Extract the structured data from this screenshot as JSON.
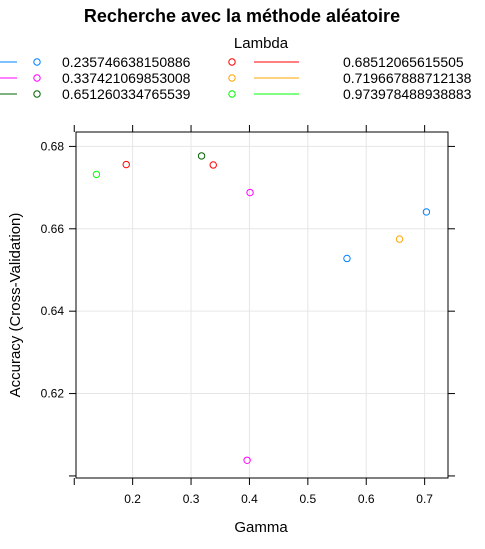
{
  "chart_data": {
    "type": "scatter",
    "title": "Recherche avec la méthode aléatoire",
    "xlabel": "Gamma",
    "ylabel": "Accuracy (Cross-Validation)",
    "legend_title": "Lambda",
    "legend_placement": "top",
    "grid": true,
    "xlim": [
      0.103,
      0.74
    ],
    "ylim": [
      0.5995,
      0.6835
    ],
    "xticks": [
      "0.2",
      "0.3",
      "0.4",
      "0.5",
      "0.6",
      "0.7"
    ],
    "yticks": [
      "0.62",
      "0.64",
      "0.66",
      "0.68"
    ],
    "series": [
      {
        "name": "0.235746638150886",
        "color": "#0080ff",
        "points": [
          {
            "x": 0.567,
            "y": 0.6528
          },
          {
            "x": 0.703,
            "y": 0.6641
          }
        ]
      },
      {
        "name": "0.337421069853008",
        "color": "#ff00ff",
        "points": [
          {
            "x": 0.401,
            "y": 0.6688
          },
          {
            "x": 0.396,
            "y": 0.6038
          }
        ]
      },
      {
        "name": "0.651260334765539",
        "color": "#006400",
        "points": [
          {
            "x": 0.318,
            "y": 0.6777
          }
        ]
      },
      {
        "name": "0.68512065615505",
        "color": "#ff0000",
        "points": [
          {
            "x": 0.189,
            "y": 0.6756
          },
          {
            "x": 0.338,
            "y": 0.6755
          }
        ]
      },
      {
        "name": "0.719667888712138",
        "color": "#ffa500",
        "points": [
          {
            "x": 0.657,
            "y": 0.6575
          }
        ]
      },
      {
        "name": "0.973978488938883",
        "color": "#00ff00",
        "points": [
          {
            "x": 0.138,
            "y": 0.6732
          }
        ]
      }
    ]
  }
}
